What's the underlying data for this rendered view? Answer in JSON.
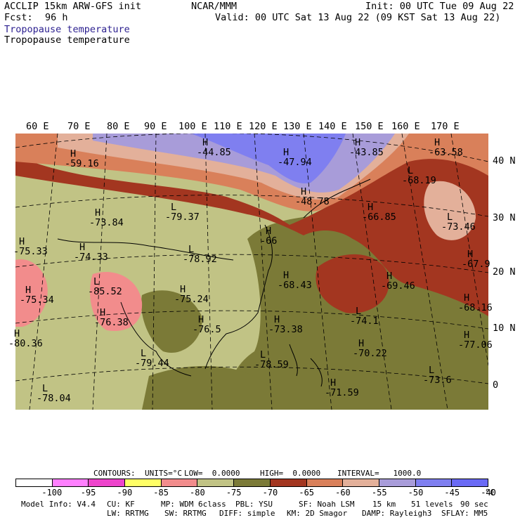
{
  "header": {
    "model": "ACCLIP 15km ARW-GFS init",
    "org": "NCAR/MMM",
    "init": "Init: 00 UTC Tue 09 Aug 22",
    "fcst_label": "Fcst:",
    "fcst_value": "96 h",
    "valid": "Valid: 00 UTC Sat 13 Aug 22 (09 KST Sat 13 Aug 22)",
    "field_title_1": "Tropopause temperature",
    "field_title_2": "Tropopause temperature"
  },
  "map": {
    "lon_labels": [
      "60 E",
      "70 E",
      "80 E",
      "90 E",
      "100 E",
      "110 E",
      "120 E",
      "130 E",
      "140 E",
      "150 E",
      "160 E",
      "170 E"
    ],
    "lat_labels": [
      "40 N",
      "30 N",
      "20 N",
      "10 N",
      "0"
    ],
    "pressure_labels": [
      {
        "letter": "H",
        "value": "-59.16"
      },
      {
        "letter": "H",
        "value": "-44.85"
      },
      {
        "letter": "H",
        "value": "-43.85"
      },
      {
        "letter": "H",
        "value": "-63.58"
      },
      {
        "letter": "H",
        "value": "-47.94"
      },
      {
        "letter": "H",
        "value": "-48.78"
      },
      {
        "letter": "L",
        "value": "-68.19"
      },
      {
        "letter": "H",
        "value": "-73.84"
      },
      {
        "letter": "L",
        "value": "-79.37"
      },
      {
        "letter": "H",
        "value": "-66.85"
      },
      {
        "letter": "L",
        "value": "-73.46"
      },
      {
        "letter": "H",
        "value": "-75.33"
      },
      {
        "letter": "H",
        "value": "-74.33"
      },
      {
        "letter": "L",
        "value": "-78.92"
      },
      {
        "letter": "H",
        "value": "-66"
      },
      {
        "letter": "H",
        "value": "-67.9"
      },
      {
        "letter": "L",
        "value": "-85.52"
      },
      {
        "letter": "H",
        "value": "-75.34"
      },
      {
        "letter": "H",
        "value": "-68.43"
      },
      {
        "letter": "H",
        "value": "-69.46"
      },
      {
        "letter": "H",
        "value": "-75.24"
      },
      {
        "letter": "H",
        "value": "-68.16"
      },
      {
        "letter": "H",
        "value": "-76.38"
      },
      {
        "letter": "H",
        "value": "-76.5"
      },
      {
        "letter": "H",
        "value": "-73.38"
      },
      {
        "letter": "L",
        "value": "-74.1"
      },
      {
        "letter": "H",
        "value": "-80.36"
      },
      {
        "letter": "H",
        "value": "-77.06"
      },
      {
        "letter": "H",
        "value": "-70.22"
      },
      {
        "letter": "L",
        "value": "-79.44"
      },
      {
        "letter": "L",
        "value": "-78.59"
      },
      {
        "letter": "L",
        "value": "-73.6"
      },
      {
        "letter": "L",
        "value": "-78.04"
      },
      {
        "letter": "H",
        "value": "-71.59"
      }
    ],
    "colors": {
      "pink": "#f28c8c",
      "olive_light": "#c1c385",
      "olive_dark": "#7b7a37",
      "rust": "#a33620",
      "orange": "#d9805a",
      "peach": "#e3b09a",
      "lavender": "#a89cd9",
      "blue": "#7f7ff0"
    }
  },
  "contours_line": {
    "label": "CONTOURS:",
    "units": "UNITS=°C",
    "low": "LOW=  0.0000",
    "high": "HIGH=  0.0000",
    "interval": "INTERVAL=   1000.0"
  },
  "colorbar": {
    "colors": [
      "#ffffff",
      "#ff80ff",
      "#ee44cc",
      "#ffff66",
      "#f28c8c",
      "#c1c385",
      "#7b7a37",
      "#a33620",
      "#d9805a",
      "#e3b09a",
      "#a89cd9",
      "#7f7ff0",
      "#6a6af5"
    ],
    "labels": [
      "-100",
      "-95",
      "-90",
      "-85",
      "-80",
      "-75",
      "-70",
      "-65",
      "-60",
      "-55",
      "-50",
      "-45",
      "-40"
    ],
    "unit": "°C"
  },
  "footer": {
    "line1": [
      "Model Info: V4.4",
      "CU: KF",
      "MP: WDM 6class",
      "PBL: YSU",
      "SF: Noah LSM",
      "15 km",
      "51 levels",
      "90 sec"
    ],
    "line2": [
      "LW: RRTMG",
      "SW: RRTMG",
      "DIFF: simple",
      "KM: 2D Smagor",
      "DAMP: Rayleigh3",
      "SFLAY: MM5"
    ]
  }
}
